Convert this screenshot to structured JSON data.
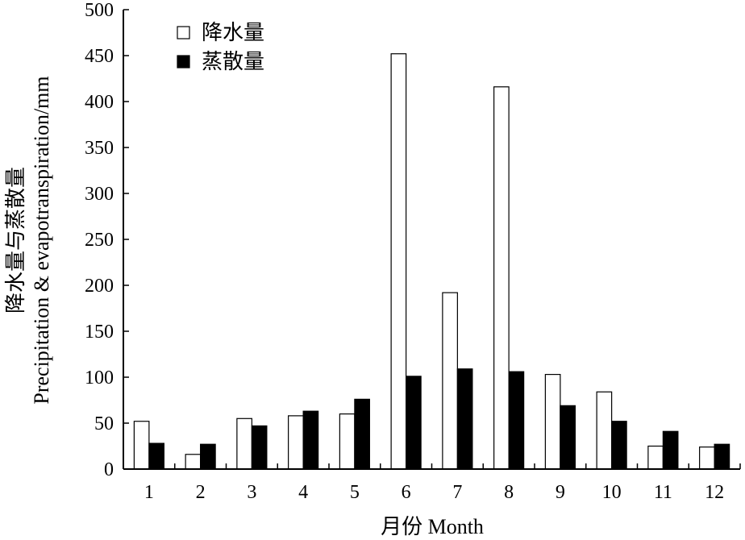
{
  "chart_data": {
    "type": "bar",
    "categories": [
      "1",
      "2",
      "3",
      "4",
      "5",
      "6",
      "7",
      "8",
      "9",
      "10",
      "11",
      "12"
    ],
    "series": [
      {
        "name": "降水量",
        "values": [
          52,
          16,
          55,
          58,
          60,
          452,
          192,
          416,
          103,
          84,
          25,
          24
        ],
        "fill": "#ffffff"
      },
      {
        "name": "蒸散量",
        "values": [
          28,
          27,
          47,
          63,
          76,
          101,
          109,
          106,
          69,
          52,
          41,
          27
        ],
        "fill": "#000000"
      }
    ],
    "title": "",
    "xlabel": "月份 Month",
    "ylabel_line1": "降水量与蒸散量",
    "ylabel_line2": "Precipitation & evapotranspiration/mm",
    "ylim": [
      0,
      500
    ],
    "yticks": [
      0,
      50,
      100,
      150,
      200,
      250,
      300,
      350,
      400,
      450,
      500
    ],
    "grid": false,
    "legend_position": "top-left"
  },
  "colors": {
    "axis": "#000000",
    "bar_outline": "#000000"
  }
}
